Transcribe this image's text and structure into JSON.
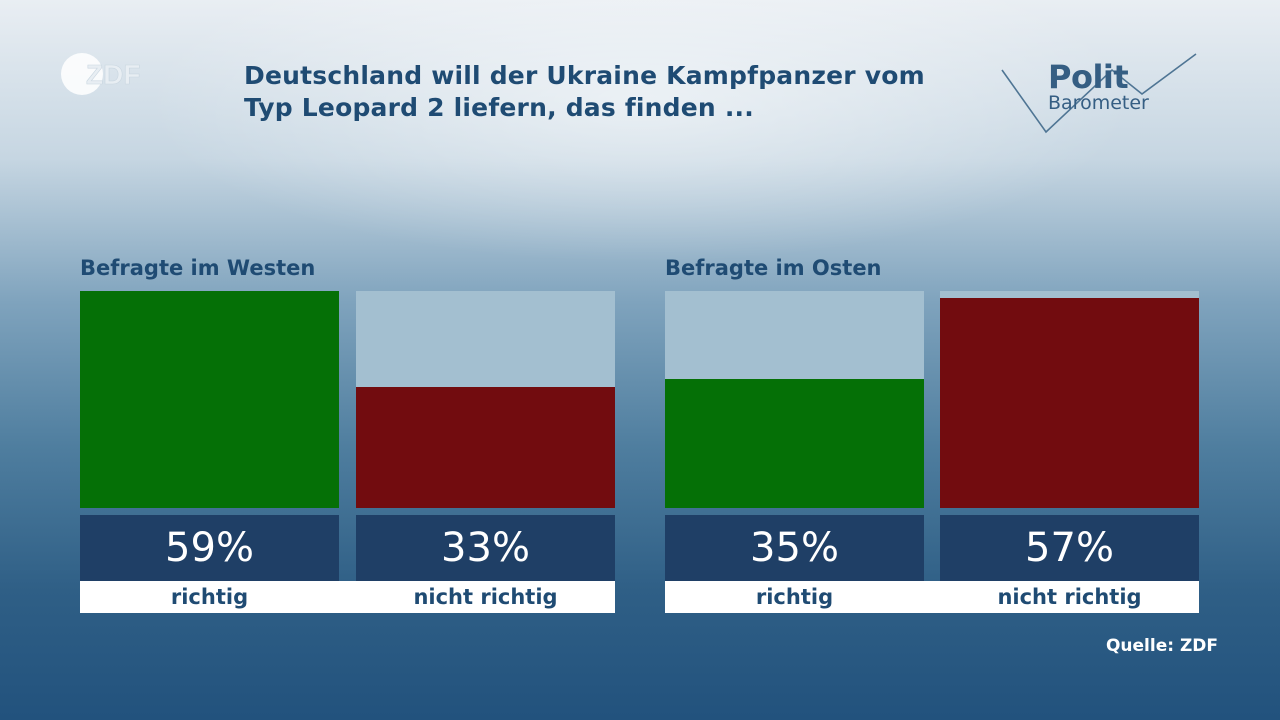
{
  "title": "Deutschland will der Ukraine Kampfpanzer vom\nTyp Leopard 2 liefern, das finden ...",
  "logo": {
    "text": "ZDF"
  },
  "brand": {
    "line1": "Polit",
    "line2": "Barometer"
  },
  "source": "Quelle: ZDF",
  "colors": {
    "richtig": "#057006",
    "nicht_richtig": "#720c0f",
    "bar_bg": "#a3bfd0",
    "value_bg": "#1f3f66"
  },
  "chart_data": [
    {
      "type": "bar",
      "title": "Befragte im Westen",
      "categories": [
        "richtig",
        "nicht richtig"
      ],
      "values": [
        59,
        33
      ],
      "value_labels": [
        "59%",
        "33%"
      ],
      "ylim": [
        0,
        59
      ]
    },
    {
      "type": "bar",
      "title": "Befragte im Osten",
      "categories": [
        "richtig",
        "nicht richtig"
      ],
      "values": [
        35,
        57
      ],
      "value_labels": [
        "35%",
        "57%"
      ],
      "ylim": [
        0,
        59
      ]
    }
  ]
}
